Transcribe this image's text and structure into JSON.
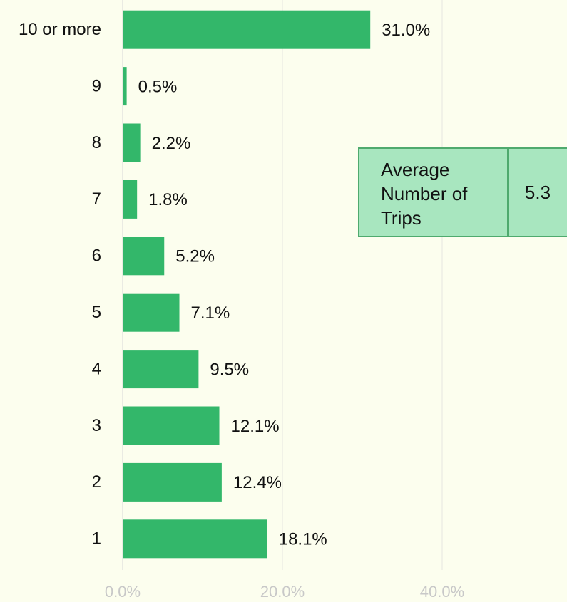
{
  "chart_data": {
    "type": "bar",
    "orientation": "horizontal",
    "categories": [
      "10 or more",
      "9",
      "8",
      "7",
      "6",
      "5",
      "4",
      "3",
      "2",
      "1"
    ],
    "values": [
      31.0,
      0.5,
      2.2,
      1.8,
      5.2,
      7.1,
      9.5,
      12.1,
      12.4,
      18.1
    ],
    "value_labels": [
      "31.0%",
      "0.5%",
      "2.2%",
      "1.8%",
      "5.2%",
      "7.1%",
      "9.5%",
      "12.1%",
      "12.4%",
      "18.1%"
    ],
    "color": "#33b76a",
    "xlim": [
      0,
      55
    ],
    "xticks": [
      {
        "value": 0,
        "label": "0.0%"
      },
      {
        "value": 20,
        "label": "20.0%"
      },
      {
        "value": 40,
        "label": "40.0%"
      }
    ],
    "grid": true,
    "annotation": {
      "label": "Average Number of Trips",
      "value": 5.3
    }
  }
}
